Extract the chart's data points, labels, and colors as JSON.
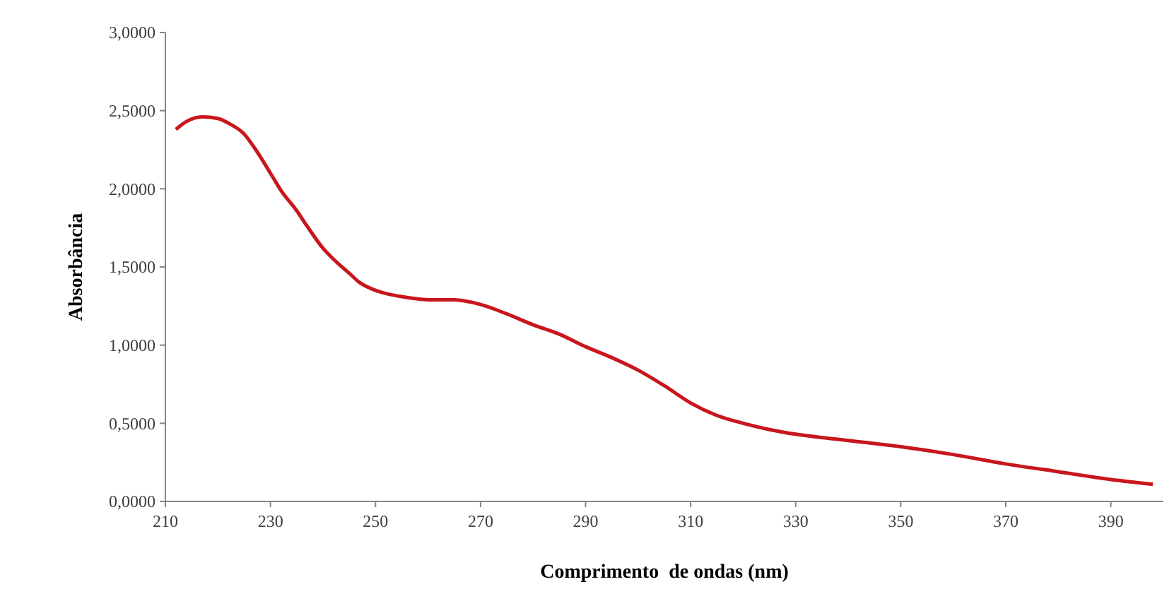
{
  "chart_data": {
    "type": "line",
    "xlabel": "Comprimento  de ondas (nm)",
    "ylabel": "Absorbância",
    "x": [
      212,
      214,
      217,
      220,
      222,
      225,
      227,
      230,
      232,
      235,
      237,
      240,
      242,
      245,
      247,
      250,
      252,
      255,
      257,
      260,
      265,
      270,
      275,
      280,
      285,
      290,
      295,
      300,
      305,
      310,
      315,
      320,
      325,
      330,
      340,
      350,
      360,
      370,
      380,
      390,
      398
    ],
    "series": [
      {
        "color": "#c8161d",
        "values": [
          2.38,
          2.43,
          2.46,
          2.45,
          2.42,
          2.35,
          2.26,
          2.1,
          1.99,
          1.86,
          1.76,
          1.62,
          1.55,
          1.46,
          1.4,
          1.35,
          1.33,
          1.31,
          1.3,
          1.29,
          1.29,
          1.26,
          1.2,
          1.13,
          1.07,
          0.99,
          0.92,
          0.84,
          0.74,
          0.63,
          0.55,
          0.5,
          0.46,
          0.43,
          0.39,
          0.35,
          0.3,
          0.24,
          0.19,
          0.14,
          0.11
        ]
      }
    ],
    "xlim": [
      210,
      400
    ],
    "xticks": [
      210,
      230,
      250,
      270,
      290,
      310,
      330,
      350,
      370,
      390
    ],
    "ylim": [
      0,
      3
    ],
    "yticks": [
      {
        "value": 0,
        "label": "0,0000"
      },
      {
        "value": 0.5,
        "label": "0,5000"
      },
      {
        "value": 1,
        "label": "1,0000"
      },
      {
        "value": 1.5,
        "label": "1,5000"
      },
      {
        "value": 2,
        "label": "2,0000"
      },
      {
        "value": 2.5,
        "label": "2,5000"
      },
      {
        "value": 3,
        "label": "3,0000"
      }
    ],
    "grid": false,
    "marker": "none",
    "line_style": "solid"
  }
}
